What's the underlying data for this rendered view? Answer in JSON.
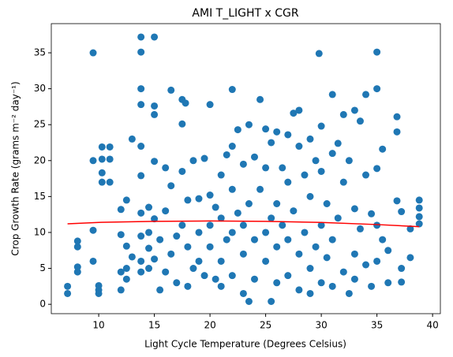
{
  "chart_data": {
    "type": "scatter",
    "title": "AMI T_LIGHT x CGR",
    "xlabel": "Light Cycle Temperature (Degrees Celsius)",
    "ylabel": "Crop Growth Rate (grams m⁻² day⁻¹)",
    "xlim": [
      5.74,
      40.7
    ],
    "ylim": [
      -1.3,
      39.06
    ],
    "xticks": [
      10,
      15,
      20,
      25,
      30,
      35,
      40
    ],
    "yticks": [
      0,
      5,
      10,
      15,
      20,
      25,
      30,
      35
    ],
    "points": {
      "color": "#1f77b4",
      "x": [
        7.2,
        7.2,
        8.1,
        8.1,
        8.1,
        8.1,
        9.5,
        9.5,
        9.5,
        9.5,
        10,
        10,
        10,
        10.3,
        10.3,
        10.3,
        10.3,
        11,
        11,
        11,
        12,
        12,
        12,
        12,
        12.5,
        12.5,
        12.5,
        12.5,
        13,
        13,
        13.8,
        13.8,
        13.8,
        13.8,
        13.8,
        13.8,
        13.8,
        13.8,
        13.8,
        13.8,
        14.5,
        14.5,
        14.5,
        14.5,
        15,
        15,
        15,
        15,
        15,
        15,
        15.5,
        15.5,
        16,
        16,
        16,
        16.5,
        16.5,
        16.5,
        17,
        17,
        17.5,
        17.5,
        17.5,
        17.5,
        17.8,
        18,
        18,
        18,
        18.5,
        18.5,
        19,
        19,
        19,
        19.5,
        19.5,
        20,
        20,
        20,
        20,
        20.5,
        20.5,
        21,
        21,
        21,
        21,
        21.5,
        21.5,
        22,
        22,
        22,
        22,
        22,
        22.5,
        22.5,
        23,
        23,
        23,
        23,
        23.5,
        23.5,
        23.5,
        24,
        24,
        24,
        24.5,
        24.5,
        25,
        25,
        25,
        25,
        25.5,
        25.5,
        25.5,
        26,
        26,
        26,
        26,
        26.5,
        26.5,
        27,
        27,
        27,
        27,
        27.5,
        27.5,
        28,
        28,
        28,
        28,
        28.5,
        28.5,
        29,
        29,
        29,
        29,
        29.5,
        29.5,
        29.8,
        30,
        30,
        30,
        30,
        30.5,
        30.5,
        31,
        31,
        31,
        31,
        31.5,
        31.5,
        32,
        32,
        32,
        32.5,
        32.5,
        33,
        33,
        33,
        33,
        33.5,
        33.5,
        34,
        34,
        34,
        34.5,
        34.5,
        35,
        35,
        35,
        35,
        35,
        35.5,
        35.5,
        36,
        36,
        36.8,
        36.8,
        36.8,
        37.2,
        37.2,
        37.2,
        38,
        38,
        38.8,
        38.8,
        38.8,
        38.8
      ],
      "values": [
        1.5,
        2.5,
        4.5,
        5.2,
        8,
        8.8,
        35,
        20,
        10.3,
        6,
        1.5,
        2,
        2.6,
        17,
        18.3,
        20.2,
        21.9,
        17,
        20.2,
        21.9,
        2,
        4.5,
        9.7,
        13.2,
        3.5,
        5,
        8.1,
        14.5,
        23,
        6.6,
        37.2,
        35.1,
        30,
        27.8,
        22,
        17.9,
        12.7,
        9.5,
        6,
        4.5,
        13.5,
        10,
        7.8,
        5,
        37.2,
        27.6,
        26.4,
        19.9,
        11.9,
        6.3,
        9,
        2,
        19,
        13,
        4.5,
        29.8,
        16.5,
        7,
        9.5,
        3,
        28.5,
        25.1,
        18.5,
        11,
        28,
        14.5,
        8,
        2.5,
        20,
        5,
        14.7,
        10,
        6,
        20.3,
        4,
        27.8,
        15.2,
        11,
        8,
        3.5,
        13.5,
        18,
        12,
        6,
        2.5,
        20.8,
        9,
        29.9,
        22,
        16,
        10,
        4,
        24.3,
        12.7,
        19.5,
        11,
        7,
        1.5,
        25,
        14,
        0.4,
        20.5,
        9,
        3.5,
        28.5,
        16,
        24.4,
        19,
        10,
        6,
        22.5,
        12,
        0.4,
        24,
        14,
        8,
        3,
        19,
        11,
        23.6,
        17,
        9,
        4,
        26.6,
        13,
        27,
        22,
        7,
        2,
        18,
        10,
        23,
        15,
        5,
        1.5,
        20,
        8,
        34.9,
        24.8,
        18.5,
        11,
        3,
        14,
        6.5,
        29.2,
        21,
        9,
        2.5,
        22.4,
        12,
        26.4,
        17,
        4.5,
        20,
        1.5,
        27,
        13.3,
        7,
        3.5,
        25.5,
        10.5,
        29.2,
        18,
        5.5,
        12.6,
        2.5,
        35.1,
        30,
        18.9,
        11,
        6,
        21.6,
        9,
        3,
        7.5,
        26.1,
        24,
        14.4,
        5,
        3.1,
        12.9,
        6.5,
        10.5,
        14.5,
        13.4,
        12.2,
        11.2
      ]
    },
    "fit": {
      "color": "#ff0000",
      "x": [
        7.2,
        10,
        15,
        20,
        25,
        30,
        35,
        38.8
      ],
      "values": [
        11.2,
        11.4,
        11.55,
        11.6,
        11.55,
        11.4,
        11.1,
        10.8
      ]
    }
  }
}
